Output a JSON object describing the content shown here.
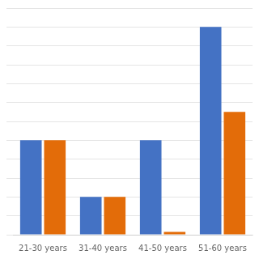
{
  "chart_data": {
    "type": "bar",
    "categories": [
      "21-30 years",
      "31-40 years",
      "41-50 years",
      "51-60 years"
    ],
    "series": [
      {
        "color": "#4472C4",
        "values": [
          10,
          4,
          10,
          22
        ]
      },
      {
        "color": "#E36C09",
        "values": [
          10,
          4,
          0.3,
          13
        ]
      }
    ],
    "ylim": [
      0,
      24
    ],
    "yticks": [
      0,
      2,
      4,
      6,
      8,
      10,
      12,
      14,
      16,
      18,
      20,
      22,
      24
    ],
    "grid": true,
    "tick_labels": "x"
  }
}
